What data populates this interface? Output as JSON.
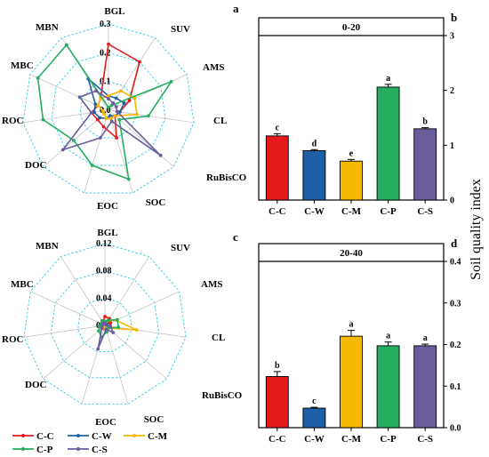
{
  "chart_data": [
    {
      "id": "a",
      "type": "radar",
      "panel_label": "a",
      "axes": [
        "BGL",
        "SUV",
        "AMS",
        "CL",
        "RuBisCO",
        "SOC",
        "EOC",
        "DOC",
        "ROC",
        "MBC",
        "MBN"
      ],
      "rlim": [
        0,
        0.3
      ],
      "ticks": [
        0.0,
        0.1,
        0.2,
        0.3
      ],
      "tick_labels": [
        "0.0",
        "0.1",
        "0.2",
        "0.3"
      ],
      "series": [
        {
          "name": "C-C",
          "color": "#e41a1c",
          "values": [
            0.23,
            0.2,
            0.08,
            0.04,
            0.03,
            0.1,
            0.06,
            0.05,
            0.06,
            0.04,
            0.05
          ]
        },
        {
          "name": "C-W",
          "color": "#1f5fa6",
          "values": [
            0.05,
            0.05,
            0.06,
            0.04,
            0.03,
            0.02,
            0.03,
            0.04,
            0.05,
            0.05,
            0.13
          ]
        },
        {
          "name": "C-M",
          "color": "#f5b800",
          "values": [
            0.05,
            0.08,
            0.1,
            0.1,
            0.03,
            0.03,
            0.03,
            0.02,
            0.02,
            0.04,
            0.05
          ]
        },
        {
          "name": "C-P",
          "color": "#25ae5f",
          "values": [
            0.01,
            0.02,
            0.24,
            0.14,
            0.05,
            0.25,
            0.2,
            0.16,
            0.23,
            0.27,
            0.27
          ]
        },
        {
          "name": "C-S",
          "color": "#6b5c9e",
          "values": [
            0.04,
            0.03,
            0.03,
            0.03,
            0.24,
            0.04,
            0.1,
            0.21,
            0.06,
            0.11,
            0.08
          ]
        }
      ]
    },
    {
      "id": "b",
      "type": "bar",
      "panel_label": "b",
      "strip_label": "0-20",
      "categories": [
        "C-C",
        "C-W",
        "C-M",
        "C-P",
        "C-S"
      ],
      "values": [
        1.17,
        0.9,
        0.71,
        2.06,
        1.3
      ],
      "errors": [
        0.04,
        0.02,
        0.03,
        0.05,
        0.02
      ],
      "letters": [
        "c",
        "d",
        "e",
        "a",
        "b"
      ],
      "colors": [
        "#e41a1c",
        "#1f5fa6",
        "#f5b800",
        "#25ae5f",
        "#6b5c9e"
      ],
      "ylim": [
        0,
        3
      ],
      "yticks": [
        0,
        1,
        2,
        3
      ],
      "ytick_labels": [
        "0",
        "1",
        "2",
        "3"
      ],
      "y_axis_side": "right"
    },
    {
      "id": "c",
      "type": "radar",
      "panel_label": "c",
      "axes": [
        "BGL",
        "SUV",
        "AMS",
        "CL",
        "RuBisCO",
        "SOC",
        "EOC",
        "DOC",
        "ROC",
        "MBC",
        "MBN"
      ],
      "rlim": [
        0,
        0.12
      ],
      "ticks": [
        0.0,
        0.04,
        0.08,
        0.12
      ],
      "tick_labels": [
        "0.00",
        "0.04",
        "0.08",
        "0.12"
      ],
      "series": [
        {
          "name": "C-C",
          "color": "#e41a1c",
          "values": [
            0.013,
            0.012,
            0.009,
            0.008,
            0.004,
            0.004,
            0.005,
            0.004,
            0.004,
            0.005,
            0.006
          ]
        },
        {
          "name": "C-W",
          "color": "#1f5fa6",
          "values": [
            0.003,
            0.003,
            0.003,
            0.003,
            0.002,
            0.002,
            0.003,
            0.003,
            0.003,
            0.004,
            0.004
          ]
        },
        {
          "name": "C-M",
          "color": "#f5b800",
          "values": [
            0.006,
            0.008,
            0.018,
            0.047,
            0.006,
            0.004,
            0.004,
            0.003,
            0.004,
            0.004,
            0.005
          ]
        },
        {
          "name": "C-P",
          "color": "#25ae5f",
          "values": [
            0.006,
            0.009,
            0.02,
            0.02,
            0.006,
            0.01,
            0.018,
            0.012,
            0.008,
            0.006,
            0.008
          ]
        },
        {
          "name": "C-S",
          "color": "#6b5c9e",
          "values": [
            0.003,
            0.003,
            0.003,
            0.008,
            0.016,
            0.006,
            0.036,
            0.006,
            0.004,
            0.004,
            0.004
          ]
        }
      ]
    },
    {
      "id": "d",
      "type": "bar",
      "panel_label": "d",
      "strip_label": "20-40",
      "categories": [
        "C-C",
        "C-W",
        "C-M",
        "C-P",
        "C-S"
      ],
      "values": [
        0.123,
        0.047,
        0.22,
        0.197,
        0.197
      ],
      "errors": [
        0.012,
        0.002,
        0.014,
        0.009,
        0.004
      ],
      "letters": [
        "b",
        "c",
        "a",
        "a",
        "a"
      ],
      "colors": [
        "#e41a1c",
        "#1f5fa6",
        "#f5b800",
        "#25ae5f",
        "#6b5c9e"
      ],
      "ylim": [
        0,
        0.4
      ],
      "yticks": [
        0,
        0.1,
        0.2,
        0.3,
        0.4
      ],
      "ytick_labels": [
        "0.0",
        "0.1",
        "0.2",
        "0.3",
        "0.4"
      ],
      "y_axis_side": "right"
    }
  ],
  "shared": {
    "ylabel": "Soil quality index",
    "legend": {
      "placement": "bottom-left",
      "entries": [
        {
          "name": "C-C",
          "color": "#e41a1c"
        },
        {
          "name": "C-W",
          "color": "#1f5fa6"
        },
        {
          "name": "C-M",
          "color": "#f5b800"
        },
        {
          "name": "C-P",
          "color": "#25ae5f"
        },
        {
          "name": "C-S",
          "color": "#6b5c9e"
        }
      ]
    }
  }
}
